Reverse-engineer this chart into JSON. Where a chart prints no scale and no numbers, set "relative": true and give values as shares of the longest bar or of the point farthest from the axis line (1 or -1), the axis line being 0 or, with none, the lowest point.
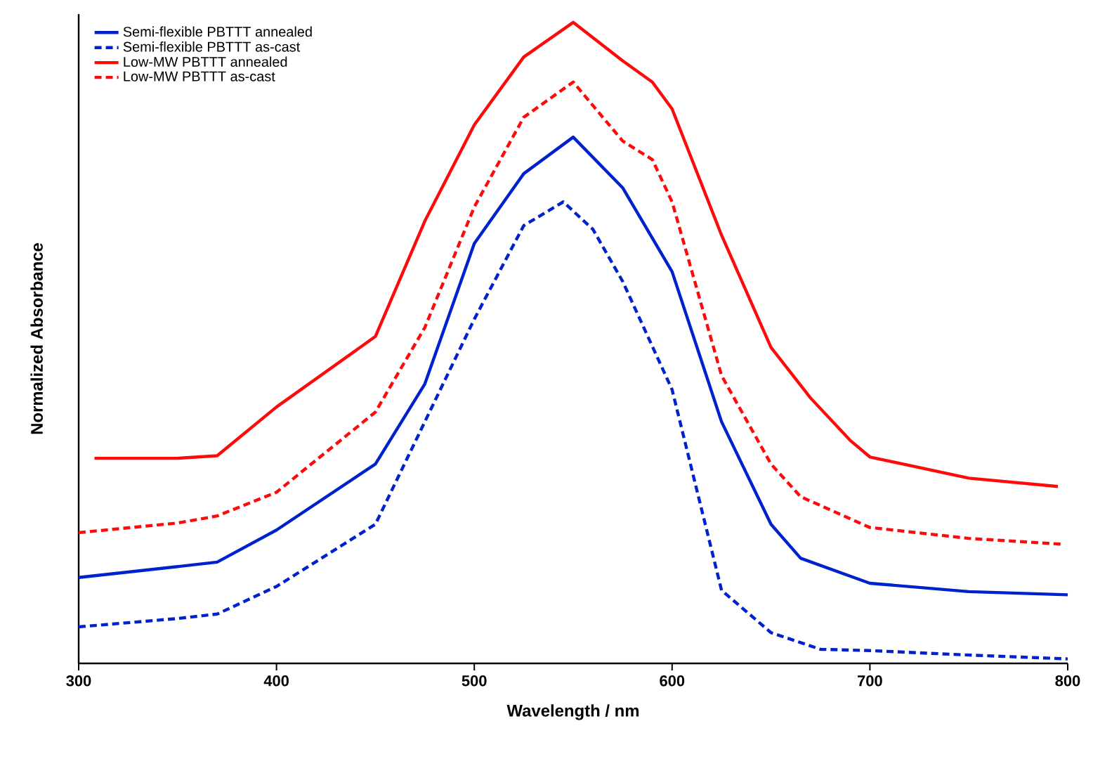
{
  "chart_data": {
    "type": "line",
    "relative": true,
    "xlabel": "Wavelength / nm",
    "ylabel": "Normalized Absorbance",
    "xlim": [
      300,
      800
    ],
    "xticks": [
      300,
      400,
      500,
      600,
      700,
      800
    ],
    "legend": "top left",
    "series": [
      {
        "name": "Semi-flexible PBTTT annealed",
        "color": "#0022cc",
        "line_style": "solid",
        "x": [
          300,
          350,
          370,
          400,
          450,
          475,
          500,
          525,
          550,
          575,
          600,
          625,
          650,
          665,
          700,
          750,
          800
        ],
        "values": [
          0.134,
          0.151,
          0.158,
          0.208,
          0.311,
          0.436,
          0.655,
          0.764,
          0.821,
          0.742,
          0.611,
          0.377,
          0.217,
          0.164,
          0.125,
          0.112,
          0.107
        ]
      },
      {
        "name": "Semi-flexible PBTTT as-cast",
        "color": "#0022cc",
        "line_style": "dashed",
        "x": [
          300,
          350,
          370,
          400,
          450,
          475,
          500,
          525,
          545,
          560,
          575,
          600,
          625,
          650,
          675,
          700,
          750,
          800
        ],
        "values": [
          0.057,
          0.07,
          0.077,
          0.12,
          0.217,
          0.377,
          0.537,
          0.683,
          0.72,
          0.677,
          0.596,
          0.427,
          0.114,
          0.048,
          0.022,
          0.02,
          0.013,
          0.007
        ]
      },
      {
        "name": "Low-MW PBTTT annealed",
        "color": "#ff0a0a",
        "line_style": "solid",
        "x": [
          308,
          350,
          370,
          400,
          450,
          475,
          500,
          525,
          550,
          575,
          590,
          600,
          625,
          650,
          670,
          690,
          700,
          750,
          795
        ],
        "values": [
          0.32,
          0.32,
          0.324,
          0.4,
          0.51,
          0.69,
          0.84,
          0.946,
          1.0,
          0.94,
          0.907,
          0.865,
          0.668,
          0.493,
          0.414,
          0.348,
          0.322,
          0.289,
          0.276
        ]
      },
      {
        "name": "Low-MW PBTTT as-cast",
        "color": "#ff0a0a",
        "line_style": "dashed",
        "x": [
          300,
          350,
          370,
          400,
          450,
          475,
          500,
          525,
          550,
          575,
          590,
          600,
          625,
          650,
          665,
          700,
          750,
          797
        ],
        "values": [
          0.204,
          0.219,
          0.23,
          0.267,
          0.392,
          0.524,
          0.712,
          0.852,
          0.907,
          0.815,
          0.786,
          0.72,
          0.449,
          0.311,
          0.26,
          0.212,
          0.195,
          0.186
        ]
      }
    ]
  }
}
